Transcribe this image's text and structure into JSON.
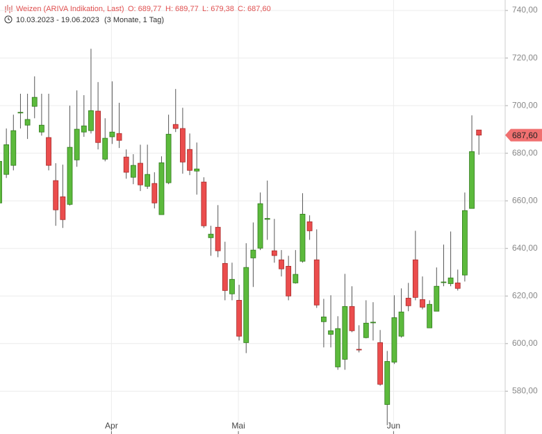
{
  "chart_data": {
    "type": "candlestick",
    "title": "Weizen (ARIVA Indikation, Last)",
    "ohlc_labels": [
      "O: 689,77",
      "H: 689,77",
      "L: 679,38",
      "C: 687,60"
    ],
    "date_range": "10.03.2023 - 19.06.2023",
    "period": "(3 Monate, 1 Tag)",
    "open": [
      659.1,
      671.1,
      674.9,
      697,
      691.8,
      699.7,
      688.9,
      686.6,
      668.5,
      661.7,
      658.5,
      677.2,
      688.9,
      689.5,
      697.7,
      677.5,
      686.9,
      688.3,
      678.4,
      669.9,
      675.8,
      666.1,
      667.3,
      654.2,
      667.6,
      692.1,
      690.4,
      681.6,
      672.5,
      667.9,
      644.5,
      648.9,
      633.7,
      620.9,
      618.2,
      600.4,
      636,
      640.1,
      652.2,
      639,
      635.2,
      632.5,
      625.5,
      634.6,
      651.2,
      635.2,
      609.2,
      603.9,
      590.2,
      593.4,
      615.6,
      597.6,
      602.5,
      608.8,
      600.4,
      574.4,
      592.2,
      603.1,
      619.1,
      635.2,
      618.5,
      606.6,
      613.6,
      625.7,
      625.2,
      625.5,
      628.8,
      656.8,
      689.77
    ],
    "high": [
      684.5,
      690.4,
      696.2,
      705,
      705,
      712.3,
      705,
      705,
      675.8,
      675.2,
      700,
      706.4,
      704.4,
      723.9,
      709.9,
      694.7,
      710.2,
      701.2,
      681.6,
      679.6,
      683.6,
      683.6,
      672,
      678.7,
      696.2,
      707,
      699.1,
      688.3,
      684.5,
      669.9,
      649.5,
      658.2,
      642.8,
      634,
      624.7,
      642.2,
      650.9,
      663.5,
      668.5,
      652.4,
      639.3,
      636.9,
      639.3,
      663.2,
      653.9,
      648,
      618.8,
      620.3,
      611.5,
      629.3,
      624.1,
      607.7,
      618.2,
      617.4,
      605.7,
      596.9,
      620.3,
      623.2,
      625.5,
      647.4,
      628.2,
      618.2,
      632,
      641.6,
      647.1,
      631.1,
      663.5,
      695.9,
      689.77
    ],
    "low": [
      656.8,
      669.6,
      672.8,
      690.4,
      686,
      694.7,
      687.4,
      672.8,
      649.5,
      648.6,
      658,
      674.3,
      686.9,
      688.3,
      681.6,
      676.6,
      683.9,
      682.2,
      669.3,
      667,
      664.1,
      665,
      656.8,
      654.2,
      667,
      688.9,
      671.4,
      670.8,
      662.6,
      648.6,
      636.9,
      636.3,
      618.2,
      618.2,
      601.3,
      596,
      623.8,
      639.3,
      643.6,
      634,
      628.2,
      618.2,
      625.2,
      634,
      643.6,
      615,
      598.4,
      598.4,
      589,
      589,
      604.8,
      596.3,
      602.2,
      601.3,
      582.3,
      565.7,
      591.4,
      602.5,
      613.6,
      618.2,
      614.4,
      606.6,
      613.6,
      624.1,
      624.1,
      622.3,
      626.1,
      656.8,
      679.38
    ],
    "close": [
      676.6,
      683.6,
      689.5,
      697.2,
      694.2,
      703.5,
      691.8,
      674.9,
      656.2,
      652.1,
      682.5,
      690.1,
      691.5,
      697.9,
      684.5,
      686.3,
      688.9,
      685.4,
      672,
      674.9,
      666.7,
      671.1,
      659.1,
      676,
      688,
      690.4,
      676.3,
      672.8,
      673.4,
      649.5,
      646,
      639,
      622.3,
      627,
      603.1,
      632,
      639.3,
      658.8,
      652.6,
      637,
      631.4,
      620,
      629.1,
      654.4,
      647.4,
      616.2,
      611.2,
      605.4,
      606.3,
      615.6,
      605.4,
      597.4,
      608.6,
      609,
      582.9,
      592.5,
      610.9,
      613.3,
      615.9,
      619.4,
      615.3,
      616.5,
      624.1,
      625.9,
      627.6,
      623.2,
      655.9,
      680.7,
      687.6
    ],
    "up_color": "#5cba3c",
    "down_color": "#eb4d4d",
    "ylim": [
      562,
      744.4
    ],
    "yticks": [
      {
        "value": 580,
        "label": "580,00"
      },
      {
        "value": 600,
        "label": "600,00"
      },
      {
        "value": 620,
        "label": "620,00"
      },
      {
        "value": 640,
        "label": "640,00"
      },
      {
        "value": 660,
        "label": "660,00"
      },
      {
        "value": 680,
        "label": "680,00"
      },
      {
        "value": 700,
        "label": "700,00"
      },
      {
        "value": 720,
        "label": "720,00"
      },
      {
        "value": 740,
        "label": "740,00"
      }
    ],
    "xticks": [
      {
        "value": 15.9,
        "label": "Apr"
      },
      {
        "value": 33.9,
        "label": "Mai"
      },
      {
        "value": 55.9,
        "label": "Jun"
      }
    ],
    "last_price": {
      "value": 687.6,
      "label": "687,60"
    },
    "grid": true
  }
}
